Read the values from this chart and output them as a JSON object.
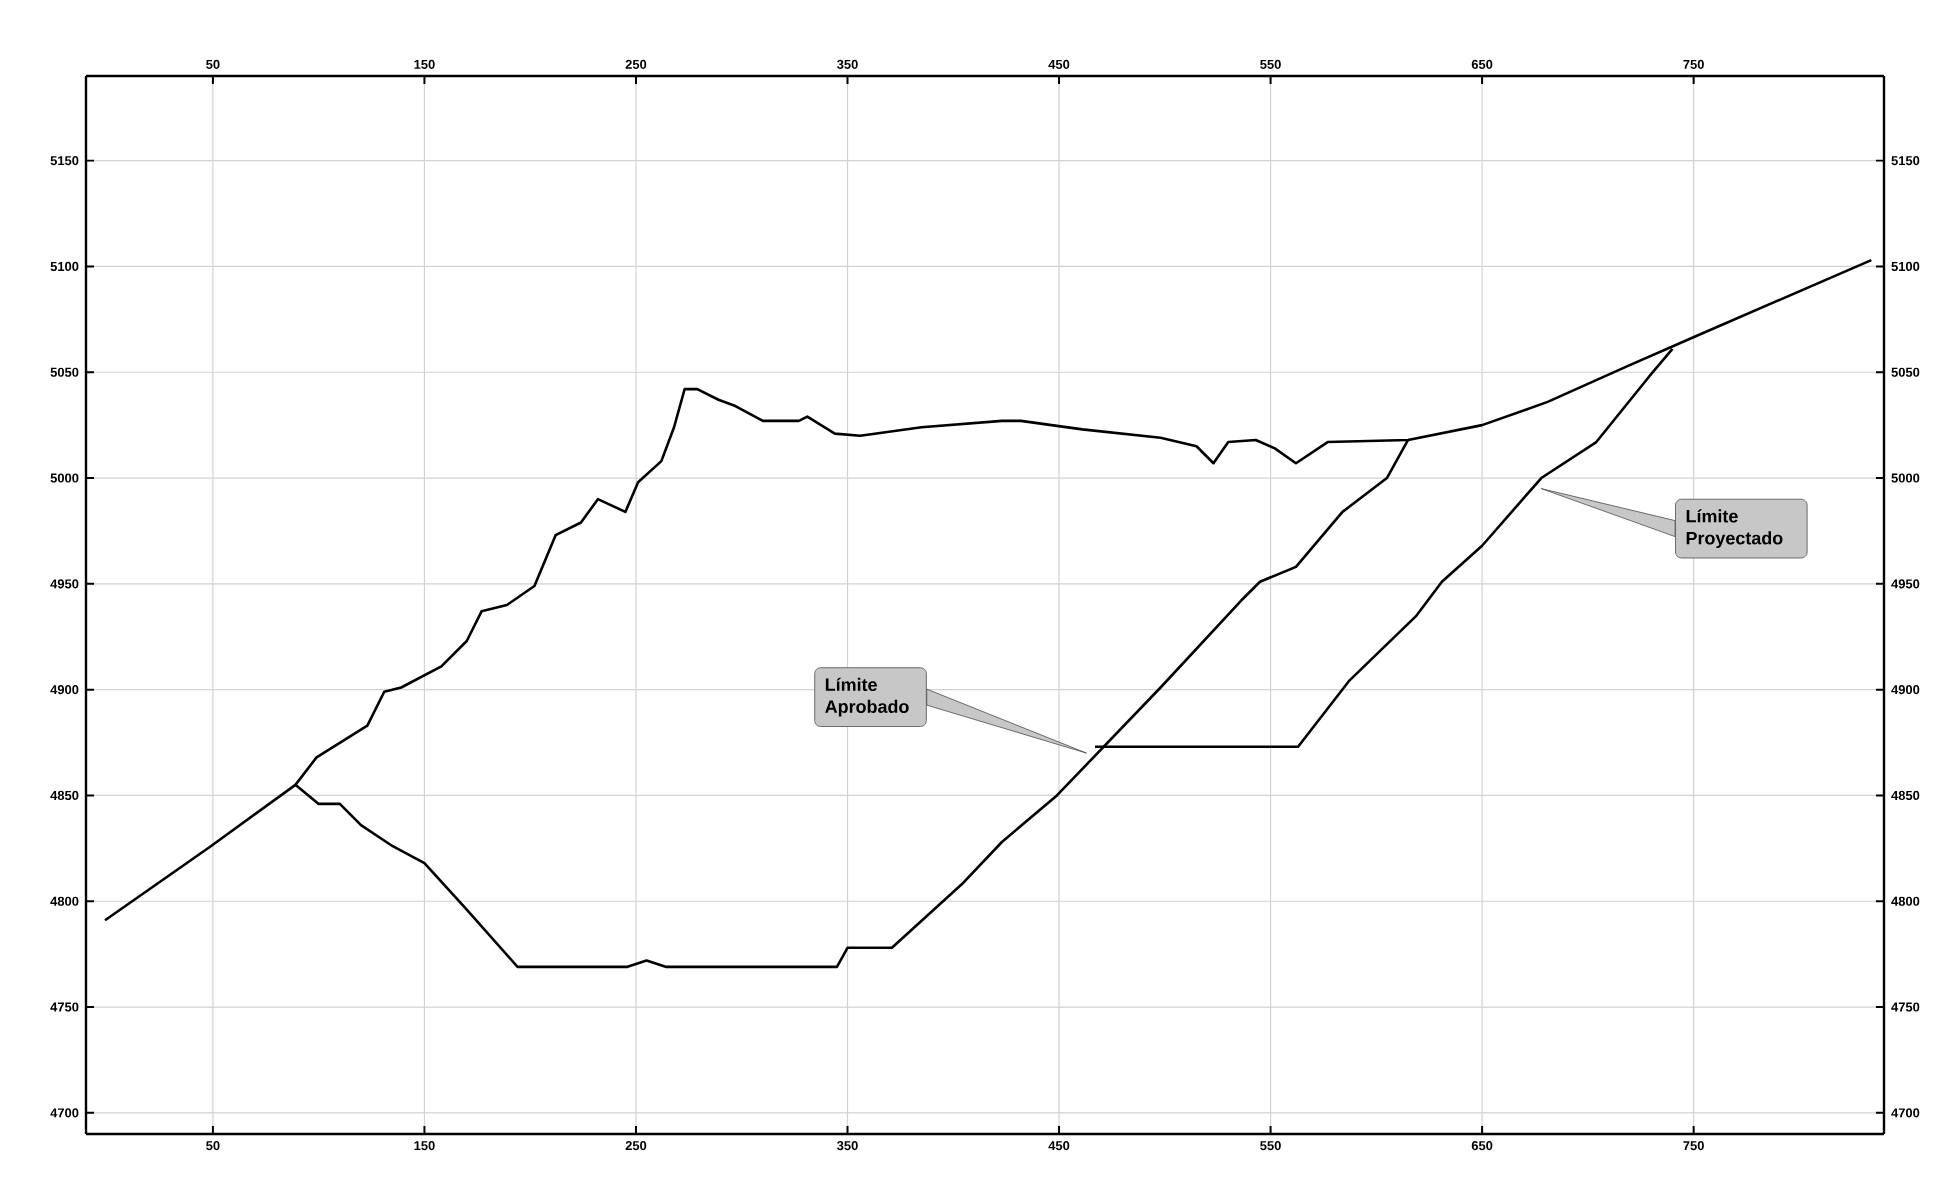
{
  "chart_data": {
    "type": "line",
    "xlim": [
      -10,
      840
    ],
    "xticks": [
      50,
      150,
      250,
      350,
      450,
      550,
      650,
      750
    ],
    "x2lim": [
      -10,
      840
    ],
    "x2ticks": [
      50,
      150,
      250,
      350,
      450,
      550,
      650,
      750
    ],
    "ylim": [
      4690,
      5190
    ],
    "yticks": [
      4700,
      4750,
      4800,
      4850,
      4900,
      4950,
      5000,
      5050,
      5100,
      5150
    ],
    "y2lim": [
      4690,
      5190
    ],
    "y2ticks": [
      4700,
      4750,
      4800,
      4850,
      4900,
      4950,
      5000,
      5050,
      5100,
      5150
    ],
    "grid": true,
    "marker": "none",
    "line_style": "solid",
    "series": [
      {
        "color": "#000000",
        "x": [
          -1,
          49,
          89,
          99,
          123,
          131,
          139,
          158,
          170,
          177,
          189,
          202,
          212,
          224,
          232,
          245,
          251,
          262,
          268,
          273,
          279,
          289,
          297,
          310,
          327,
          331,
          344,
          356,
          385,
          423,
          432,
          461,
          498,
          515,
          523,
          530,
          543,
          552,
          562,
          577,
          615,
          650,
          681,
          719,
          751,
          834
        ],
        "values": [
          4791,
          4826,
          4855,
          4868,
          4883,
          4899,
          4901,
          4911,
          4923,
          4937,
          4940,
          4949,
          4973,
          4979,
          4990,
          4984,
          4998,
          5008,
          5024,
          5042,
          5042,
          5037,
          5034,
          5027,
          5027,
          5029,
          5021,
          5020,
          5024,
          5027,
          5027,
          5023,
          5019,
          5015,
          5007,
          5017,
          5018,
          5014,
          5007,
          5017,
          5018,
          5025,
          5036,
          5053,
          5067,
          5103
        ]
      },
      {
        "color": "#000000",
        "x": [
          89,
          100,
          110,
          120,
          135,
          150,
          170,
          194,
          246,
          255,
          264,
          345,
          350,
          371,
          404,
          423,
          449,
          498,
          536,
          545,
          562,
          584,
          605,
          615
        ],
        "values": [
          4855,
          4846,
          4846,
          4836,
          4826,
          4818,
          4796,
          4769,
          4769,
          4772,
          4769,
          4769,
          4778,
          4778,
          4808,
          4828,
          4850,
          4901,
          4942,
          4951,
          4958,
          4984,
          5000,
          5018
        ]
      },
      {
        "color": "#000000",
        "x": [
          467,
          563,
          587,
          619,
          631,
          650,
          678,
          704,
          729,
          740
        ],
        "values": [
          4873,
          4873,
          4904,
          4935,
          4951,
          4968,
          5000,
          5017,
          5048,
          5061
        ]
      }
    ],
    "annotations": [
      {
        "text": "Límite Aprobado",
        "x": 463,
        "y": 4870
      },
      {
        "text": "Límite Proyectado",
        "x": 678,
        "y": 4995
      }
    ]
  }
}
